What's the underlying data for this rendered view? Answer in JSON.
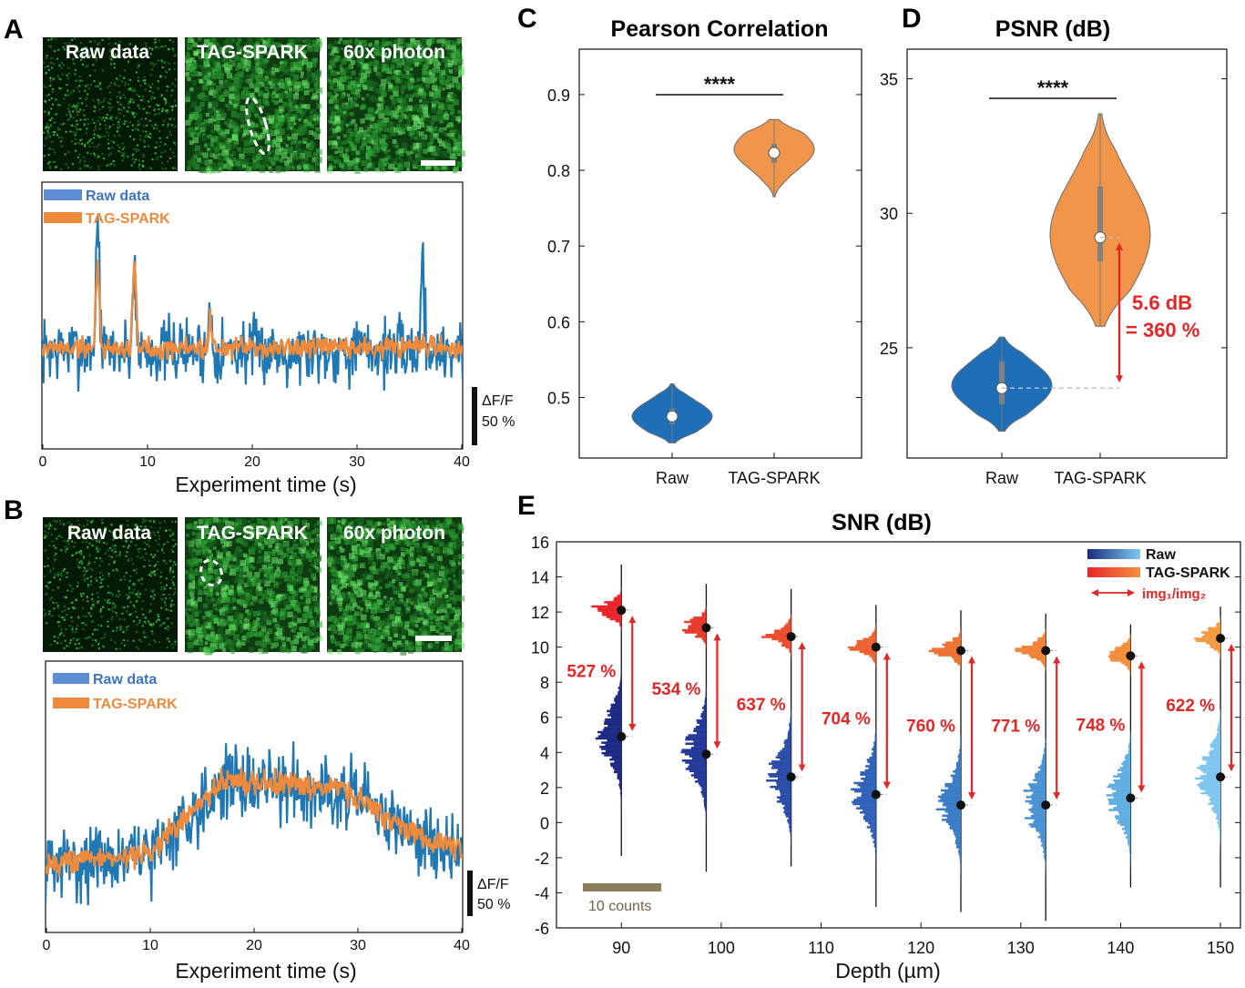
{
  "panels": {
    "A": {
      "label": "A",
      "image_titles": [
        "Raw data",
        "TAG-SPARK",
        "60x photon"
      ],
      "legend": [
        "Raw data",
        "TAG-SPARK"
      ],
      "xlabel": "Experiment time (s)",
      "xticks": [
        "0",
        "10",
        "20",
        "30",
        "40"
      ],
      "scalebar_label": [
        "ΔF/F",
        "50 %"
      ]
    },
    "B": {
      "label": "B",
      "image_titles": [
        "Raw data",
        "TAG-SPARK",
        "60x photon"
      ],
      "legend": [
        "Raw data",
        "TAG-SPARK"
      ],
      "xlabel": "Experiment time (s)",
      "xticks": [
        "0",
        "10",
        "20",
        "30",
        "40"
      ],
      "scalebar_label": [
        "ΔF/F",
        "50 %"
      ]
    },
    "C": {
      "label": "C"
    },
    "D": {
      "label": "D"
    },
    "E": {
      "label": "E"
    }
  },
  "colors": {
    "raw": "#1f77b4",
    "tag": "#ee8a3c",
    "violin_raw": "#1f6fb8",
    "violin_tag": "#f0954a",
    "annotation": "#e32626",
    "green": "#3ddc4a"
  },
  "chart_data": [
    {
      "panel": "A",
      "type": "line",
      "xlabel": "Experiment time (s)",
      "xlim": [
        0,
        40
      ],
      "xticks": [
        0,
        10,
        20,
        30,
        40
      ],
      "series": [
        {
          "name": "Raw data",
          "color": "#1f77b4",
          "baseline": 0,
          "noise": 1.0,
          "spikes": [
            [
              5.3,
              5.0
            ],
            [
              8.8,
              3.2
            ],
            [
              16.0,
              1.5
            ],
            [
              36.2,
              3.6
            ]
          ]
        },
        {
          "name": "TAG-SPARK",
          "color": "#ee8a3c",
          "baseline": 0,
          "noise": 0.35,
          "spikes": [
            [
              5.3,
              3.2
            ],
            [
              8.8,
              3.3
            ],
            [
              16.0,
              1.0
            ]
          ]
        }
      ]
    },
    {
      "panel": "B",
      "type": "line",
      "xlabel": "Experiment time (s)",
      "xlim": [
        0,
        40
      ],
      "xticks": [
        0,
        10,
        20,
        30,
        40
      ],
      "series": [
        {
          "name": "Raw data",
          "color": "#1f77b4",
          "noise": 1.0,
          "trend": [
            [
              0,
              0
            ],
            [
              10,
              0.3
            ],
            [
              17,
              2.6
            ],
            [
              28,
              2.4
            ],
            [
              35,
              1.0
            ],
            [
              40,
              0.3
            ]
          ]
        },
        {
          "name": "TAG-SPARK",
          "color": "#ee8a3c",
          "noise": 0.35,
          "trend": [
            [
              0,
              0
            ],
            [
              10,
              0.3
            ],
            [
              17,
              2.6
            ],
            [
              28,
              2.4
            ],
            [
              35,
              1.0
            ],
            [
              40,
              0.3
            ]
          ]
        }
      ]
    },
    {
      "panel": "C",
      "type": "violin",
      "title": "Pearson Correlation",
      "categories": [
        "Raw",
        "TAG-SPARK"
      ],
      "ylim": [
        0.42,
        0.96
      ],
      "yticks": [
        "0.5",
        "0.6",
        "0.7",
        "0.8",
        "0.9"
      ],
      "yticks_values": [
        0.5,
        0.6,
        0.7,
        0.8,
        0.9
      ],
      "significance": "****",
      "series": [
        {
          "name": "Raw",
          "median": 0.475,
          "min": 0.44,
          "max": 0.518,
          "q1": 0.465,
          "q3": 0.485,
          "widest": 0.475,
          "color": "#1f6fb8"
        },
        {
          "name": "TAG-SPARK",
          "median": 0.823,
          "min": 0.765,
          "max": 0.867,
          "q1": 0.81,
          "q3": 0.835,
          "widest": 0.828,
          "color": "#f0954a"
        }
      ]
    },
    {
      "panel": "D",
      "type": "violin",
      "title": "PSNR (dB)",
      "categories": [
        "Raw",
        "TAG-SPARK"
      ],
      "ylim": [
        20.9,
        36.1
      ],
      "yticks": [
        "25",
        "30",
        "35"
      ],
      "yticks_values": [
        25,
        30,
        35
      ],
      "significance": "****",
      "annotation": [
        "5.6 dB",
        "= 360 %"
      ],
      "series": [
        {
          "name": "Raw",
          "median": 23.5,
          "min": 21.9,
          "max": 25.4,
          "q1": 22.9,
          "q3": 24.5,
          "widest": 23.6,
          "color": "#1f6fb8"
        },
        {
          "name": "TAG-SPARK",
          "median": 29.1,
          "min": 25.8,
          "max": 33.7,
          "q1": 28.2,
          "q3": 31.0,
          "widest": 29.2,
          "color": "#f0954a"
        }
      ]
    },
    {
      "panel": "E",
      "type": "histogram",
      "title": "SNR (dB)",
      "xlabel": "Depth (µm)",
      "xticks": [
        "90",
        "100",
        "110",
        "120",
        "130",
        "140",
        "150"
      ],
      "xticks_values": [
        90,
        100,
        110,
        120,
        130,
        140,
        150
      ],
      "xlim": [
        83.5,
        152.0
      ],
      "ylim": [
        -6,
        16
      ],
      "yticks": [
        "-6",
        "-4",
        "-2",
        "0",
        "2",
        "4",
        "6",
        "8",
        "10",
        "12",
        "14",
        "16"
      ],
      "yticks_values": [
        -6,
        -4,
        -2,
        0,
        2,
        4,
        6,
        8,
        10,
        12,
        14,
        16
      ],
      "legend": [
        "Raw",
        "TAG-SPARK",
        "img₁/img₂"
      ],
      "scale_label": "10 counts",
      "depths": [
        90,
        98.5,
        107,
        115.5,
        124,
        132.5,
        141,
        150
      ],
      "raw_median": [
        4.9,
        3.9,
        2.6,
        1.6,
        1.0,
        1.0,
        1.4,
        2.6
      ],
      "tag_median": [
        12.1,
        11.1,
        10.6,
        10.0,
        9.8,
        9.8,
        9.5,
        10.5
      ],
      "ratio_labels": [
        "527 %",
        "534 %",
        "637 %",
        "704 %",
        "760 %",
        "771 %",
        "748 %",
        "622 %"
      ],
      "line_top": [
        14.7,
        13.6,
        13.3,
        12.4,
        12.1,
        11.9,
        11.3,
        12.3
      ],
      "line_bottom": [
        -1.9,
        -2.8,
        -2.5,
        -4.8,
        -5.1,
        -5.6,
        -3.7,
        -3.7
      ]
    }
  ]
}
